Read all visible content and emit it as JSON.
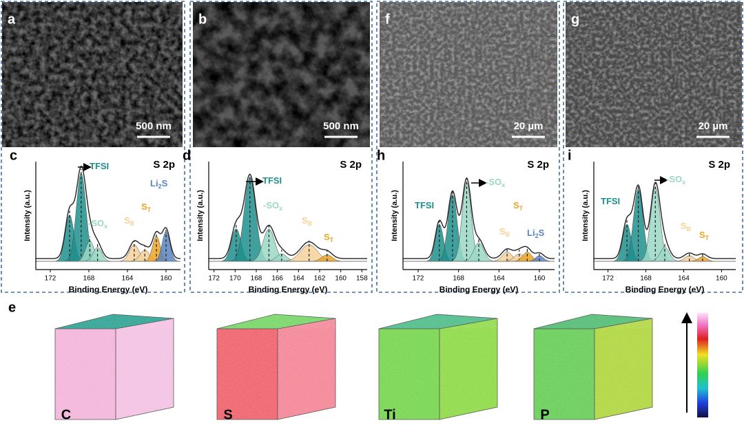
{
  "sem": [
    {
      "label": "a",
      "scale_bar": "500 nm"
    },
    {
      "label": "b",
      "scale_bar": "500 nm"
    },
    {
      "label": "f",
      "scale_bar": "20 µm"
    },
    {
      "label": "g",
      "scale_bar": "20 µm"
    }
  ],
  "xps": [
    {
      "label": "c",
      "title": "S 2p",
      "x_label": "Binding Energy (eV)",
      "y_label": "Intensity (a.u.)",
      "xlim": [
        173.5,
        158.5
      ],
      "xticks": [
        172,
        168,
        164,
        160
      ],
      "annotations": [
        {
          "parts": [
            "TFSI"
          ]
        },
        {
          "parts": [
            "-SO",
            "x"
          ]
        },
        {
          "parts": [
            "S",
            "B"
          ]
        },
        {
          "parts": [
            "S",
            "T"
          ]
        },
        {
          "parts": [
            "Li",
            "2",
            "S"
          ]
        }
      ]
    },
    {
      "label": "d",
      "title": "S 2p",
      "x_label": "Binding Energy (eV)",
      "y_label": "Intensity (a.u.)",
      "xlim": [
        172.5,
        157.5
      ],
      "xticks": [
        172,
        170,
        168,
        166,
        164,
        162,
        160,
        158
      ],
      "annotations": [
        {
          "parts": [
            "TFSI"
          ]
        },
        {
          "parts": [
            "-SO",
            "x"
          ]
        },
        {
          "parts": [
            "S",
            "B"
          ]
        },
        {
          "parts": [
            "S",
            "T"
          ]
        }
      ]
    },
    {
      "label": "h",
      "title": "S 2p",
      "x_label": "Binding Energy (eV)",
      "y_label": "Intensity (a.u.)",
      "xlim": [
        173.5,
        158.5
      ],
      "xticks": [
        172,
        168,
        164,
        160
      ],
      "annotations": [
        {
          "parts": [
            "-SO",
            "x"
          ]
        },
        {
          "parts": [
            "TFSI"
          ]
        },
        {
          "parts": [
            "S",
            "B"
          ]
        },
        {
          "parts": [
            "S",
            "T"
          ]
        },
        {
          "parts": [
            "Li",
            "2",
            "S"
          ]
        }
      ]
    },
    {
      "label": "i",
      "title": "S 2p",
      "x_label": "Binding Energy (eV)",
      "y_label": "Intensity (a.u.)",
      "xlim": [
        173.5,
        158.5
      ],
      "xticks": [
        172,
        168,
        164,
        160
      ],
      "annotations": [
        {
          "parts": [
            "-SO",
            "x"
          ]
        },
        {
          "parts": [
            "TFSI"
          ]
        },
        {
          "parts": [
            "S",
            "B"
          ]
        },
        {
          "parts": [
            "S",
            "T"
          ]
        }
      ]
    }
  ],
  "tof": {
    "label": "e",
    "elements": [
      "C",
      "S",
      "Ti",
      "P"
    ]
  }
}
